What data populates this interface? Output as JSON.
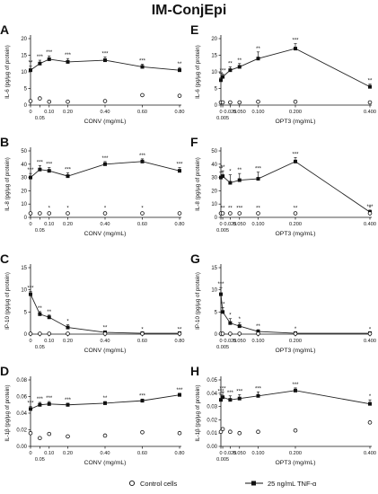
{
  "figure": {
    "title": "IM-ConjEpi",
    "legend": [
      {
        "label": "Control cells",
        "marker": "open-circle"
      },
      {
        "label": "25 ng/mL TNF-α",
        "marker": "filled-square-line"
      }
    ]
  },
  "chart_data": [
    {
      "panel": "A",
      "type": "line",
      "ylabel": "IL-6 (pg/µg of protein)",
      "xlabel": "CONV (mg/mL)",
      "ylim": [
        0,
        20
      ],
      "yticks": [
        "0",
        "5",
        "10",
        "15",
        "20"
      ],
      "xticks": [
        {
          "v": 0,
          "t": "0"
        },
        {
          "v": 0.05,
          "t": "0.05",
          "low": true
        },
        {
          "v": 0.1,
          "t": "0.10"
        },
        {
          "v": 0.2,
          "t": "0.20"
        },
        {
          "v": 0.4,
          "t": "0.40"
        },
        {
          "v": 0.6,
          "t": "0.60"
        },
        {
          "v": 0.8,
          "t": "0.80"
        }
      ],
      "xlim": [
        0,
        0.8
      ],
      "series": [
        {
          "marker": "square-line",
          "x": [
            0,
            0.05,
            0.1,
            0.2,
            0.4,
            0.6,
            0.8
          ],
          "y": [
            10.5,
            12.5,
            13.8,
            13.0,
            13.5,
            11.5,
            10.5
          ],
          "err": [
            1.2,
            1.0,
            1.0,
            1.0,
            1.0,
            0.8,
            0.8
          ],
          "sig": [
            "**",
            "***",
            "***",
            "***",
            "***",
            "***",
            "**"
          ]
        },
        {
          "marker": "open-circle",
          "x": [
            0,
            0.05,
            0.1,
            0.2,
            0.4,
            0.6,
            0.8
          ],
          "y": [
            1.2,
            2.0,
            1.0,
            1.0,
            1.2,
            3.0,
            2.8
          ],
          "err": [
            0,
            0,
            0,
            0,
            0,
            0,
            0
          ]
        }
      ]
    },
    {
      "panel": "E",
      "type": "line",
      "ylabel": "IL-6 (pg/µg of protein)",
      "xlabel": "OPT3 (mg/mL)",
      "ylim": [
        0,
        20
      ],
      "yticks": [
        "0",
        "5",
        "10",
        "15",
        "20"
      ],
      "xticks": [
        {
          "v": 0,
          "t": "0"
        },
        {
          "v": 0.005,
          "t": "0.005",
          "low": true
        },
        {
          "v": 0.025,
          "t": "0.025"
        },
        {
          "v": 0.05,
          "t": "0.050"
        },
        {
          "v": 0.1,
          "t": "0.100"
        },
        {
          "v": 0.2,
          "t": "0.200"
        },
        {
          "v": 0.4,
          "t": "0.400"
        }
      ],
      "xlim": [
        0,
        0.4
      ],
      "series": [
        {
          "marker": "square-line",
          "x": [
            0,
            0.005,
            0.025,
            0.05,
            0.1,
            0.2,
            0.4
          ],
          "y": [
            7.5,
            8.5,
            10.5,
            11.5,
            14.0,
            17.0,
            5.5
          ],
          "err": [
            0.8,
            0.8,
            1.0,
            1.0,
            2.0,
            1.5,
            0.8
          ],
          "sig": [
            "**",
            "***",
            "**",
            "**",
            "**",
            "***",
            "**"
          ]
        },
        {
          "marker": "open-circle",
          "x": [
            0,
            0.005,
            0.025,
            0.05,
            0.1,
            0.2,
            0.4
          ],
          "y": [
            0.8,
            0.8,
            0.8,
            0.8,
            1.0,
            1.0,
            0.8
          ],
          "err": [
            0,
            0,
            0,
            0,
            0,
            0,
            0
          ]
        }
      ]
    },
    {
      "panel": "B",
      "type": "line",
      "ylabel": "IL-8 (pg/µg of protein)",
      "xlabel": "CONV (mg/mL)",
      "ylim": [
        0,
        50
      ],
      "yticks": [
        "0",
        "10",
        "20",
        "30",
        "40",
        "50"
      ],
      "xticks": [
        {
          "v": 0,
          "t": "0"
        },
        {
          "v": 0.05,
          "t": "0.05",
          "low": true
        },
        {
          "v": 0.1,
          "t": "0.10"
        },
        {
          "v": 0.2,
          "t": "0.20"
        },
        {
          "v": 0.4,
          "t": "0.40"
        },
        {
          "v": 0.6,
          "t": "0.60"
        },
        {
          "v": 0.8,
          "t": "0.80"
        }
      ],
      "xlim": [
        0,
        0.8
      ],
      "series": [
        {
          "marker": "square-line",
          "x": [
            0,
            0.05,
            0.1,
            0.2,
            0.4,
            0.6,
            0.8
          ],
          "y": [
            30,
            36,
            35,
            31,
            40,
            42,
            35
          ],
          "err": [
            3,
            3,
            2.5,
            2.5,
            2,
            2,
            2.5
          ],
          "sig": [
            "***",
            "***",
            "***",
            "***",
            "***",
            "***",
            "***"
          ]
        },
        {
          "marker": "open-circle",
          "x": [
            0,
            0.05,
            0.1,
            0.2,
            0.4,
            0.6,
            0.8
          ],
          "y": [
            3,
            3,
            3,
            3,
            3,
            3,
            3
          ],
          "err": [
            0,
            0,
            0,
            0,
            0,
            0,
            0
          ],
          "sig": [
            "",
            "",
            "*",
            "*",
            "*",
            "*",
            ""
          ]
        }
      ]
    },
    {
      "panel": "F",
      "type": "line",
      "ylabel": "IL-8 (pg/µg of protein)",
      "xlabel": "OPT3 (mg/mL)",
      "ylim": [
        0,
        50
      ],
      "yticks": [
        "0",
        "10",
        "20",
        "30",
        "40",
        "50"
      ],
      "xticks": [
        {
          "v": 0,
          "t": "0"
        },
        {
          "v": 0.005,
          "t": "0.005",
          "low": true
        },
        {
          "v": 0.025,
          "t": "0.025"
        },
        {
          "v": 0.05,
          "t": "0.050"
        },
        {
          "v": 0.1,
          "t": "0.100"
        },
        {
          "v": 0.2,
          "t": "0.200"
        },
        {
          "v": 0.4,
          "t": "0.400"
        }
      ],
      "xlim": [
        0,
        0.4
      ],
      "series": [
        {
          "marker": "square-line",
          "x": [
            0,
            0.005,
            0.025,
            0.05,
            0.1,
            0.2,
            0.4
          ],
          "y": [
            30,
            31,
            26,
            28,
            29,
            42,
            4
          ],
          "err": [
            4,
            4,
            6,
            5,
            5,
            3,
            1.5
          ],
          "sig": [
            "**",
            "**",
            "*",
            "**",
            "***",
            "***",
            "***"
          ]
        },
        {
          "marker": "open-circle",
          "x": [
            0,
            0.005,
            0.025,
            0.05,
            0.1,
            0.2,
            0.4
          ],
          "y": [
            3,
            3,
            3,
            3,
            3,
            3,
            3
          ],
          "err": [
            0,
            0,
            0,
            0,
            0,
            0,
            0
          ],
          "sig": [
            "",
            "**",
            "**",
            "***",
            "**",
            "**",
            "*"
          ]
        }
      ]
    },
    {
      "panel": "C",
      "type": "line",
      "ylabel": "IP-10 (pg/µg of protein)",
      "xlabel": "CONV (mg/mL)",
      "ylim": [
        0,
        15
      ],
      "yticks": [
        "0",
        "5",
        "10",
        "15"
      ],
      "xticks": [
        {
          "v": 0,
          "t": "0"
        },
        {
          "v": 0.05,
          "t": "0.05",
          "low": true
        },
        {
          "v": 0.1,
          "t": "0.10"
        },
        {
          "v": 0.2,
          "t": "0.20"
        },
        {
          "v": 0.4,
          "t": "0.40"
        },
        {
          "v": 0.6,
          "t": "0.60"
        },
        {
          "v": 0.8,
          "t": "0.80"
        }
      ],
      "xlim": [
        0,
        0.8
      ],
      "series": [
        {
          "marker": "square-line",
          "x": [
            0,
            0.05,
            0.1,
            0.2,
            0.4,
            0.6,
            0.8
          ],
          "y": [
            9.0,
            4.5,
            3.8,
            1.5,
            0.4,
            0.2,
            0.2
          ],
          "err": [
            0.6,
            0.6,
            0.5,
            0.6,
            0.3,
            0.1,
            0.1
          ],
          "sig": [
            "***",
            "**",
            "**",
            "*",
            "**",
            "*",
            "**"
          ]
        },
        {
          "marker": "open-circle",
          "x": [
            0,
            0.05,
            0.1,
            0.2,
            0.4,
            0.6,
            0.8
          ],
          "y": [
            0.1,
            0.1,
            0.1,
            0.1,
            0.1,
            0.1,
            0.1
          ],
          "err": [
            0,
            0,
            0,
            0,
            0,
            0,
            0
          ]
        }
      ]
    },
    {
      "panel": "G",
      "type": "line",
      "ylabel": "IP-10 (pg/µg of protein)",
      "xlabel": "OPT3 (mg/mL)",
      "ylim": [
        0,
        15
      ],
      "yticks": [
        "0",
        "5",
        "10",
        "15"
      ],
      "xticks": [
        {
          "v": 0,
          "t": "0"
        },
        {
          "v": 0.005,
          "t": "0.005",
          "low": true
        },
        {
          "v": 0.025,
          "t": "0.025"
        },
        {
          "v": 0.05,
          "t": "0.050"
        },
        {
          "v": 0.1,
          "t": "0.100"
        },
        {
          "v": 0.2,
          "t": "0.200"
        },
        {
          "v": 0.4,
          "t": "0.400"
        }
      ],
      "xlim": [
        0,
        0.4
      ],
      "series": [
        {
          "marker": "square-line",
          "x": [
            0,
            0.005,
            0.025,
            0.05,
            0.1,
            0.2,
            0.4
          ],
          "y": [
            9.0,
            5.0,
            2.5,
            1.8,
            0.6,
            0.2,
            0.2
          ],
          "err": [
            1.5,
            1.0,
            1.0,
            0.8,
            0.4,
            0.2,
            0.1
          ],
          "sig": [
            "***",
            "**",
            "*",
            "*",
            "**",
            "*",
            "*"
          ]
        },
        {
          "marker": "open-circle",
          "x": [
            0,
            0.005,
            0.025,
            0.05,
            0.1,
            0.2,
            0.4
          ],
          "y": [
            0.1,
            0.1,
            0.1,
            0.1,
            0.1,
            0.1,
            0.1
          ],
          "err": [
            0,
            0,
            0,
            0,
            0,
            0,
            0
          ]
        }
      ]
    },
    {
      "panel": "D",
      "type": "line",
      "ylabel": "IL-1β (pg/µg of protein)",
      "xlabel": "CONV (mg/mL)",
      "ylim": [
        0,
        0.08
      ],
      "yticks": [
        "0.00",
        "0.02",
        "0.04",
        "0.06",
        "0.08"
      ],
      "xticks": [
        {
          "v": 0,
          "t": "0"
        },
        {
          "v": 0.05,
          "t": "0.05",
          "low": true
        },
        {
          "v": 0.1,
          "t": "0.10"
        },
        {
          "v": 0.2,
          "t": "0.20"
        },
        {
          "v": 0.4,
          "t": "0.40"
        },
        {
          "v": 0.6,
          "t": "0.60"
        },
        {
          "v": 0.8,
          "t": "0.80"
        }
      ],
      "xlim": [
        0,
        0.8
      ],
      "series": [
        {
          "marker": "square-line",
          "x": [
            0,
            0.05,
            0.1,
            0.2,
            0.4,
            0.6,
            0.8
          ],
          "y": [
            0.045,
            0.05,
            0.051,
            0.05,
            0.052,
            0.055,
            0.062
          ],
          "err": [
            0.003,
            0.003,
            0.003,
            0.002,
            0.002,
            0.002,
            0.002
          ],
          "sig": [
            "***",
            "***",
            "***",
            "***",
            "**",
            "***",
            "***"
          ]
        },
        {
          "marker": "open-circle",
          "x": [
            0,
            0.05,
            0.1,
            0.2,
            0.4,
            0.6,
            0.8
          ],
          "y": [
            0.016,
            0.01,
            0.015,
            0.012,
            0.013,
            0.017,
            0.016
          ],
          "err": [
            0,
            0,
            0,
            0,
            0,
            0,
            0
          ]
        }
      ]
    },
    {
      "panel": "H",
      "type": "line",
      "ylabel": "IL-1β (pg/µg of protein)",
      "xlabel": "OPT3 (mg/mL)",
      "ylim": [
        0,
        0.05
      ],
      "yticks": [
        "0.00",
        "0.01",
        "0.02",
        "0.03",
        "0.04",
        "0.05"
      ],
      "xticks": [
        {
          "v": 0,
          "t": "0"
        },
        {
          "v": 0.005,
          "t": "0.005",
          "low": true
        },
        {
          "v": 0.025,
          "t": "0.025"
        },
        {
          "v": 0.05,
          "t": "0.050"
        },
        {
          "v": 0.1,
          "t": "0.100"
        },
        {
          "v": 0.2,
          "t": "0.200"
        },
        {
          "v": 0.4,
          "t": "0.400"
        }
      ],
      "xlim": [
        0,
        0.4
      ],
      "series": [
        {
          "marker": "square-line",
          "x": [
            0,
            0.005,
            0.025,
            0.05,
            0.1,
            0.2,
            0.4
          ],
          "y": [
            0.035,
            0.037,
            0.035,
            0.036,
            0.038,
            0.042,
            0.032
          ],
          "err": [
            0.004,
            0.004,
            0.003,
            0.003,
            0.003,
            0.002,
            0.003
          ],
          "sig": [
            "***",
            "***",
            "***",
            "***",
            "***",
            "***",
            "*"
          ]
        },
        {
          "marker": "open-circle",
          "x": [
            0,
            0.005,
            0.025,
            0.05,
            0.1,
            0.2,
            0.4
          ],
          "y": [
            0.011,
            0.013,
            0.011,
            0.01,
            0.011,
            0.012,
            0.018
          ],
          "err": [
            0,
            0,
            0,
            0,
            0,
            0,
            0
          ]
        }
      ]
    }
  ]
}
